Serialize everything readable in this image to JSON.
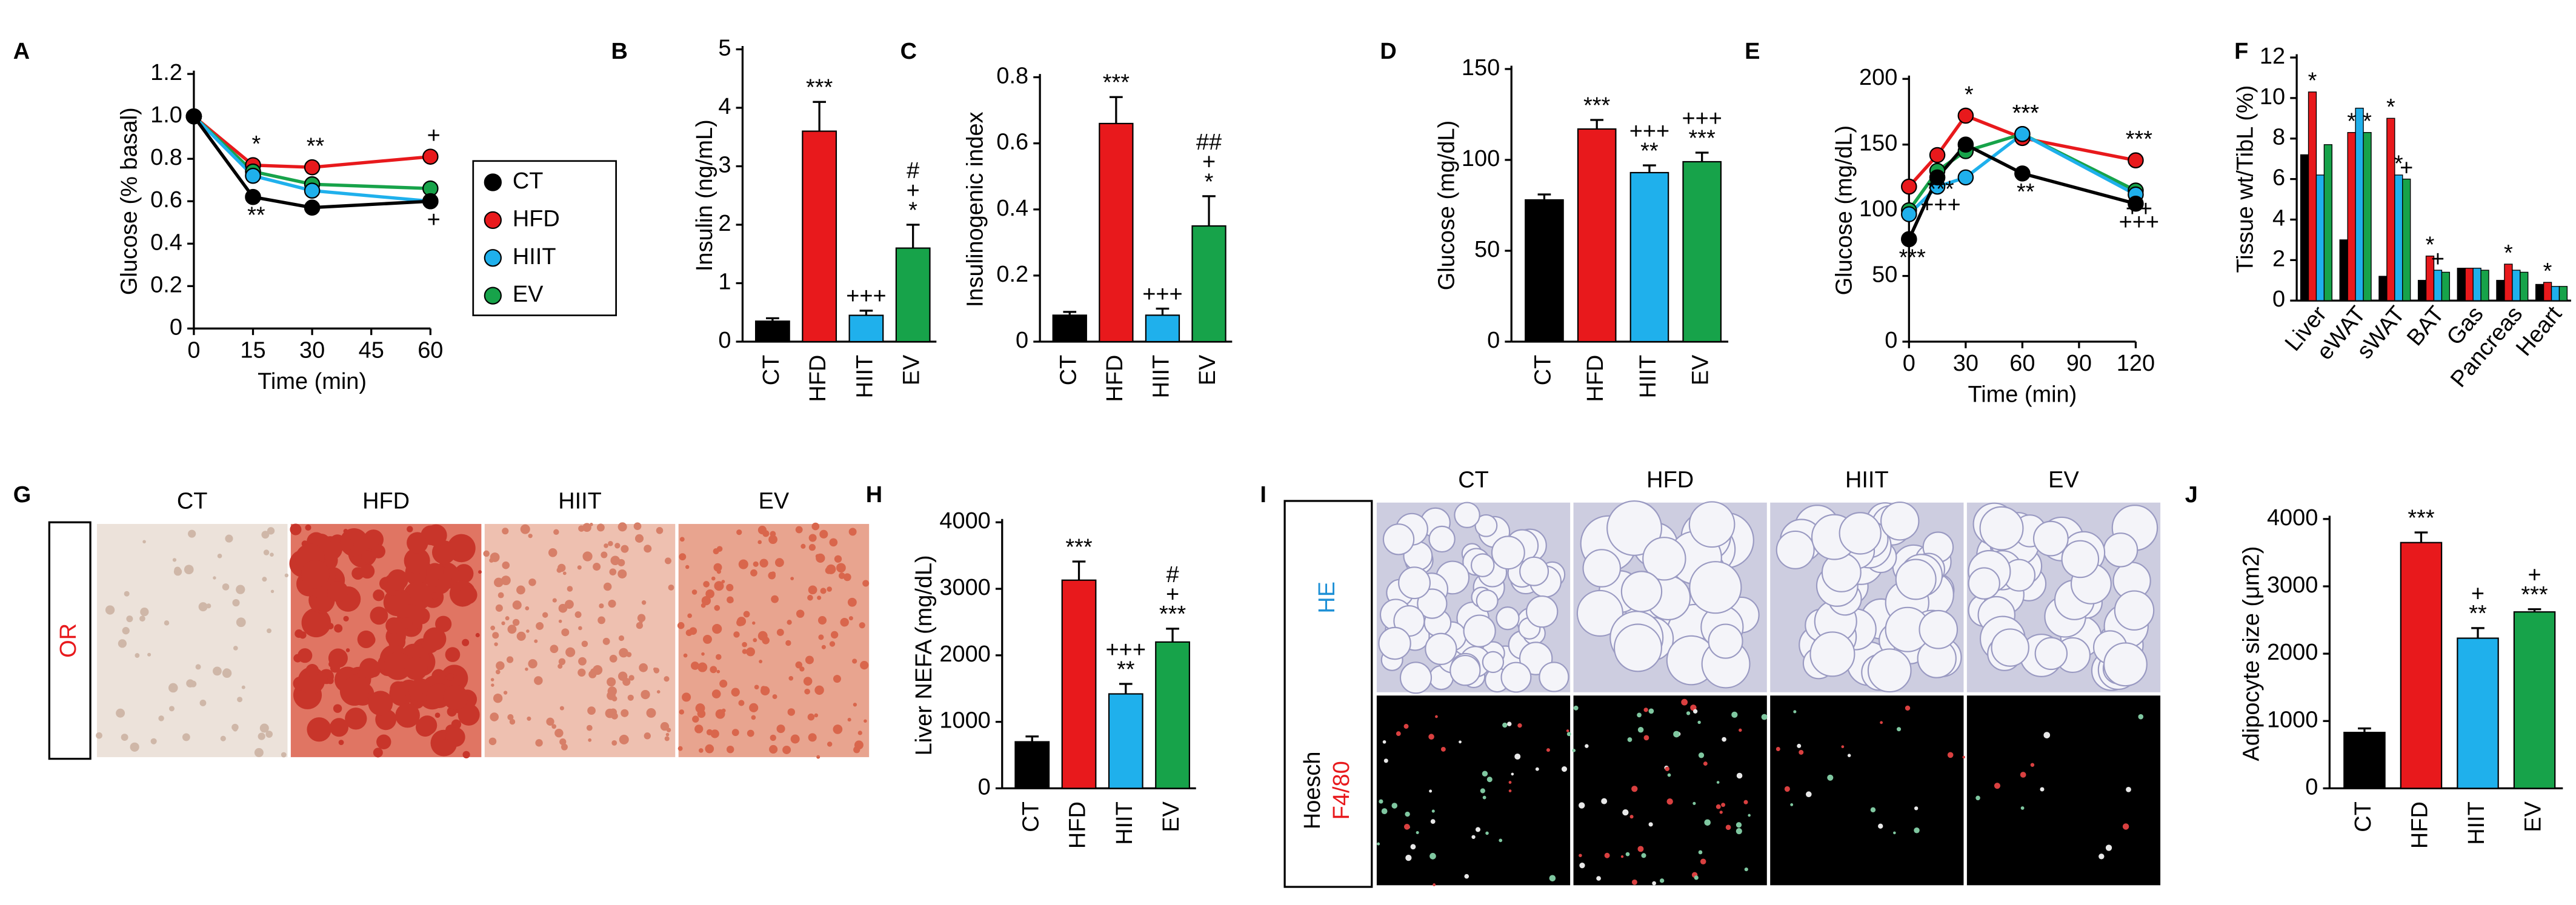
{
  "chart_data": [
    {
      "panel": "A",
      "type": "line",
      "ylabel": "Glucose (% basal)",
      "xlabel": "Time (min)",
      "x": [
        0,
        15,
        30,
        60
      ],
      "xlim": [
        0,
        60
      ],
      "xticks": [
        0,
        15,
        30,
        45,
        60
      ],
      "ylim": [
        0,
        1.2
      ],
      "yticks": [
        0,
        0.2,
        0.4,
        0.6,
        0.8,
        {
          "value": 1,
          "label": "1.0"
        },
        1.2
      ],
      "legend": "right",
      "series": [
        {
          "name": "CT",
          "color": "#000000",
          "values": [
            1.0,
            0.62,
            0.57,
            0.6
          ],
          "annotations": [
            null,
            "**",
            null,
            null
          ]
        },
        {
          "name": "HFD",
          "color": "#e8191c",
          "values": [
            1.0,
            0.77,
            0.76,
            0.81
          ],
          "annotations": [
            null,
            "*",
            "**",
            "+"
          ]
        },
        {
          "name": "HIIT",
          "color": "#1fb0ec",
          "values": [
            1.0,
            0.72,
            0.65,
            0.6
          ],
          "annotations": [
            null,
            null,
            null,
            "+"
          ]
        },
        {
          "name": "EV",
          "color": "#17a34a",
          "values": [
            1.0,
            0.74,
            0.68,
            0.66
          ],
          "annotations": [
            null,
            null,
            null,
            null
          ]
        }
      ]
    },
    {
      "panel": "B",
      "type": "bar",
      "ylabel": "Insulin (ng/mL)",
      "categories": [
        "CT",
        "HFD",
        "HIIT",
        "EV"
      ],
      "values": [
        0.35,
        3.6,
        0.45,
        1.6
      ],
      "errors": [
        0.05,
        0.5,
        0.08,
        0.4
      ],
      "colors": [
        "#000000",
        "#e8191c",
        "#1fb0ec",
        "#17a34a"
      ],
      "annotations": [
        [],
        [
          "***"
        ],
        [
          "+++"
        ],
        [
          "#",
          "+",
          "*"
        ]
      ],
      "ylim": [
        0,
        5
      ],
      "yticks": [
        0,
        1,
        2,
        3,
        4,
        5
      ]
    },
    {
      "panel": "C",
      "type": "bar",
      "ylabel": "Insulinogenic index",
      "categories": [
        "CT",
        "HFD",
        "HIIT",
        "EV"
      ],
      "values": [
        0.08,
        0.66,
        0.08,
        0.35
      ],
      "errors": [
        0.01,
        0.08,
        0.02,
        0.09
      ],
      "colors": [
        "#000000",
        "#e8191c",
        "#1fb0ec",
        "#17a34a"
      ],
      "annotations": [
        [],
        [
          "***"
        ],
        [
          "+++"
        ],
        [
          "##",
          "+",
          "*"
        ]
      ],
      "ylim": [
        0,
        0.8
      ],
      "yticks": [
        0,
        0.2,
        0.4,
        0.6,
        0.8
      ]
    },
    {
      "panel": "D",
      "type": "bar",
      "ylabel": "Glucose (mg/dL)",
      "categories": [
        "CT",
        "HFD",
        "HIIT",
        "EV"
      ],
      "values": [
        78,
        117,
        93,
        99
      ],
      "errors": [
        3,
        5,
        4,
        5
      ],
      "colors": [
        "#000000",
        "#e8191c",
        "#1fb0ec",
        "#17a34a"
      ],
      "annotations": [
        [],
        [
          "***"
        ],
        [
          "+++",
          "**"
        ],
        [
          "+++",
          "***"
        ]
      ],
      "ylim": [
        0,
        150
      ],
      "yticks": [
        0,
        50,
        100,
        150
      ]
    },
    {
      "panel": "E",
      "type": "line",
      "ylabel": "Glucose (mg/dL)",
      "xlabel": "Time (min)",
      "x": [
        0,
        15,
        30,
        60,
        120
      ],
      "xlim": [
        0,
        120
      ],
      "xticks": [
        0,
        30,
        60,
        90,
        120
      ],
      "ylim": [
        0,
        200
      ],
      "yticks": [
        0,
        50,
        100,
        150,
        200
      ],
      "series": [
        {
          "name": "CT",
          "color": "#000000",
          "values": [
            78,
            125,
            150,
            128,
            105
          ],
          "annotations": [
            "***",
            null,
            null,
            "**",
            "+++"
          ]
        },
        {
          "name": "HFD",
          "color": "#e8191c",
          "values": [
            118,
            142,
            172,
            155,
            138
          ],
          "annotations": [
            null,
            null,
            "*",
            null,
            "***"
          ]
        },
        {
          "name": "HIIT",
          "color": "#1fb0ec",
          "values": [
            97,
            118,
            125,
            158,
            112
          ],
          "annotations": [
            null,
            "+++",
            null,
            "***",
            null
          ]
        },
        {
          "name": "EV",
          "color": "#17a34a",
          "values": [
            100,
            130,
            145,
            158,
            115
          ],
          "annotations": [
            null,
            "***",
            null,
            "***",
            "++"
          ]
        }
      ]
    },
    {
      "panel": "F",
      "type": "grouped-bar",
      "ylabel": "Tissue wt/TibL (%)",
      "categories": [
        "Liver",
        "eWAT",
        "sWAT",
        "BAT",
        "Gas",
        "Pancreas",
        "Heart"
      ],
      "ylim": [
        0,
        12
      ],
      "yticks": [
        0,
        2,
        4,
        6,
        8,
        10,
        12
      ],
      "series": [
        {
          "name": "CT",
          "color": "#000000",
          "values": [
            7.2,
            3.0,
            1.2,
            1.0,
            1.6,
            1.0,
            0.8
          ],
          "annotations": [
            null,
            null,
            null,
            null,
            null,
            null,
            null
          ]
        },
        {
          "name": "HFD",
          "color": "#e8191c",
          "values": [
            10.3,
            8.3,
            9.0,
            2.2,
            1.6,
            1.8,
            0.9
          ],
          "annotations": [
            "*",
            "*",
            "*",
            "*",
            null,
            "*",
            "*"
          ]
        },
        {
          "name": "HIIT",
          "color": "#1fb0ec",
          "values": [
            6.2,
            9.5,
            6.2,
            1.5,
            1.6,
            1.5,
            0.7
          ],
          "annotations": [
            null,
            null,
            "*",
            "+",
            null,
            null,
            null
          ]
        },
        {
          "name": "EV",
          "color": "#17a34a",
          "values": [
            7.7,
            8.3,
            6.0,
            1.4,
            1.5,
            1.4,
            0.7
          ],
          "annotations": [
            null,
            "*",
            "+",
            null,
            null,
            null,
            null
          ]
        }
      ]
    },
    {
      "panel": "G",
      "type": "image-grid",
      "columns": [
        "CT",
        "HFD",
        "HIIT",
        "EV"
      ],
      "rows": [
        {
          "labels": [
            {
              "text": "OR",
              "color": "#e8191c"
            }
          ]
        }
      ]
    },
    {
      "panel": "H",
      "type": "bar",
      "ylabel": "Liver NEFA (mg/dL)",
      "categories": [
        "CT",
        "HFD",
        "HIIT",
        "EV"
      ],
      "values": [
        700,
        3130,
        1420,
        2200
      ],
      "errors": [
        80,
        280,
        150,
        200
      ],
      "colors": [
        "#000000",
        "#e8191c",
        "#1fb0ec",
        "#17a34a"
      ],
      "annotations": [
        [],
        [
          "***"
        ],
        [
          "+++",
          "**"
        ],
        [
          "#",
          "+",
          "***"
        ]
      ],
      "ylim": [
        0,
        4000
      ],
      "yticks": [
        0,
        1000,
        2000,
        3000,
        4000
      ]
    },
    {
      "panel": "I",
      "type": "image-grid",
      "columns": [
        "CT",
        "HFD",
        "HIIT",
        "EV"
      ],
      "rows": [
        {
          "labels": [
            {
              "text": "HE",
              "color": "#1e90d6"
            }
          ]
        },
        {
          "labels": [
            {
              "text": "Hoesch",
              "color": "#000000"
            },
            {
              "text": "F4/80",
              "color": "#e8191c"
            }
          ]
        }
      ]
    },
    {
      "panel": "J",
      "type": "bar",
      "ylabel": "Adipocyte size (μm2)",
      "categories": [
        "CT",
        "HFD",
        "HIIT",
        "EV"
      ],
      "values": [
        830,
        3650,
        2230,
        2620
      ],
      "errors": [
        60,
        150,
        150,
        40
      ],
      "colors": [
        "#000000",
        "#e8191c",
        "#1fb0ec",
        "#17a34a"
      ],
      "annotations": [
        [],
        [
          "***"
        ],
        [
          "+",
          "**"
        ],
        [
          "+",
          "***"
        ]
      ],
      "ylim": [
        0,
        4000
      ],
      "yticks": [
        0,
        1000,
        2000,
        3000,
        4000
      ]
    }
  ]
}
